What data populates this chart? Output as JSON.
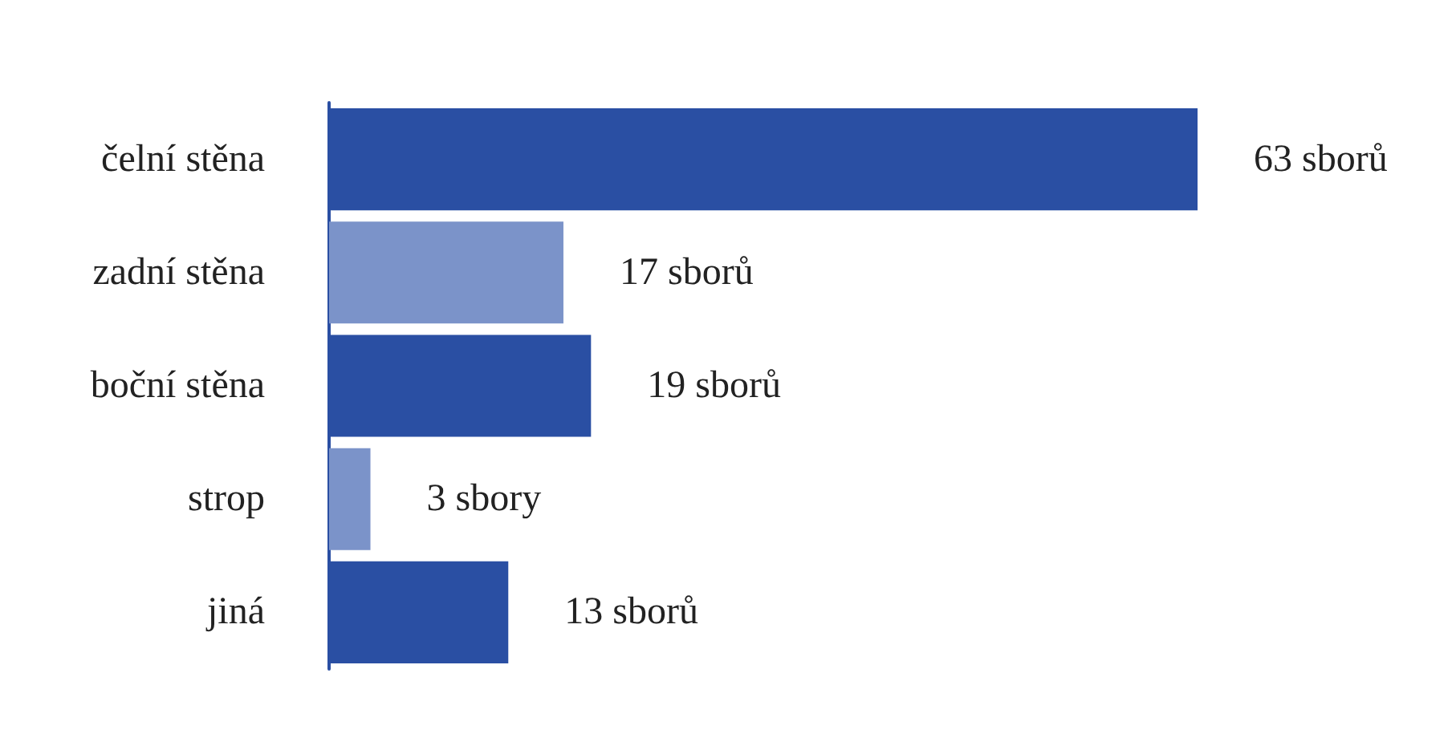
{
  "chart_data": {
    "type": "bar",
    "orientation": "horizontal",
    "categories": [
      "čelní stěna",
      "zadní stěna",
      "boční stěna",
      "strop",
      "jiná"
    ],
    "values": [
      63,
      17,
      19,
      3,
      13
    ],
    "colors": [
      "#2a4fa3",
      "#7b93c9",
      "#2a4fa3",
      "#7b93c9",
      "#2a4fa3"
    ],
    "value_labels": [
      "63 sborů",
      "17 sborů",
      "19 sborů",
      "3 sbory",
      "13 sborů"
    ]
  }
}
